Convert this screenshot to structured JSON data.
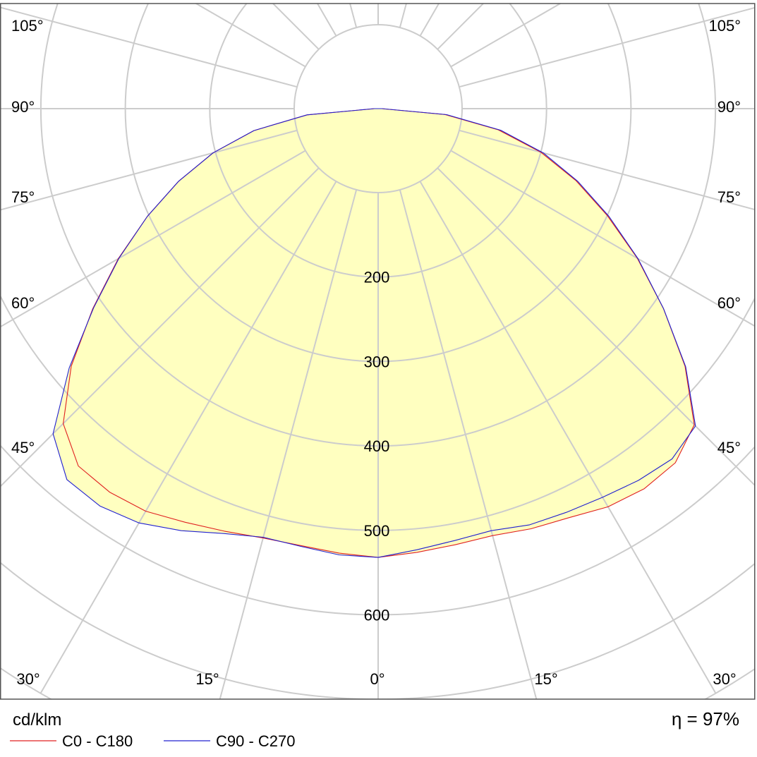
{
  "chart_data": {
    "type": "polar",
    "unit_label": "cd/klm",
    "efficiency_label": "η = 97%",
    "radial_tick_values": [
      200,
      300,
      400,
      500,
      600
    ],
    "radial_max": 800,
    "angle_labels": {
      "left": [
        "105°",
        "90°",
        "75°",
        "60°",
        "45°"
      ],
      "right": [
        "105°",
        "90°",
        "75°",
        "60°",
        "45°"
      ],
      "bottom": [
        "30°",
        "15°",
        "0°",
        "15°",
        "30°"
      ]
    },
    "fill_color": "#ffffc0",
    "series": [
      {
        "name": "C0 - C180",
        "color": "#e02020",
        "angles_deg": [
          0,
          5,
          10,
          15,
          20,
          25,
          30,
          35,
          40,
          45,
          50,
          55,
          60,
          65,
          70,
          75,
          80,
          85,
          90
        ],
        "left_values": [
          532,
          529,
          526,
          527,
          533,
          541,
          551,
          555,
          553,
          528,
          475,
          413,
          356,
          302,
          252,
          203,
          150,
          85,
          5
        ],
        "right_values": [
          532,
          528,
          525,
          524,
          530,
          535,
          545,
          550,
          548,
          530,
          475,
          413,
          355,
          300,
          250,
          200,
          145,
          80,
          5
        ]
      },
      {
        "name": "C90 - C270",
        "color": "#2020d0",
        "angles_deg": [
          0,
          5,
          10,
          15,
          20,
          25,
          30,
          35,
          40,
          45,
          50,
          55,
          60,
          65,
          70,
          75,
          80,
          85,
          90
        ],
        "left_values": [
          532,
          531,
          527,
          526,
          536,
          552,
          567,
          575,
          574,
          545,
          478,
          412,
          355,
          302,
          252,
          203,
          150,
          85,
          5
        ],
        "right_values": [
          533,
          525,
          520,
          518,
          525,
          528,
          532,
          538,
          542,
          532,
          476,
          413,
          356,
          302,
          252,
          203,
          148,
          82,
          5
        ]
      }
    ]
  }
}
